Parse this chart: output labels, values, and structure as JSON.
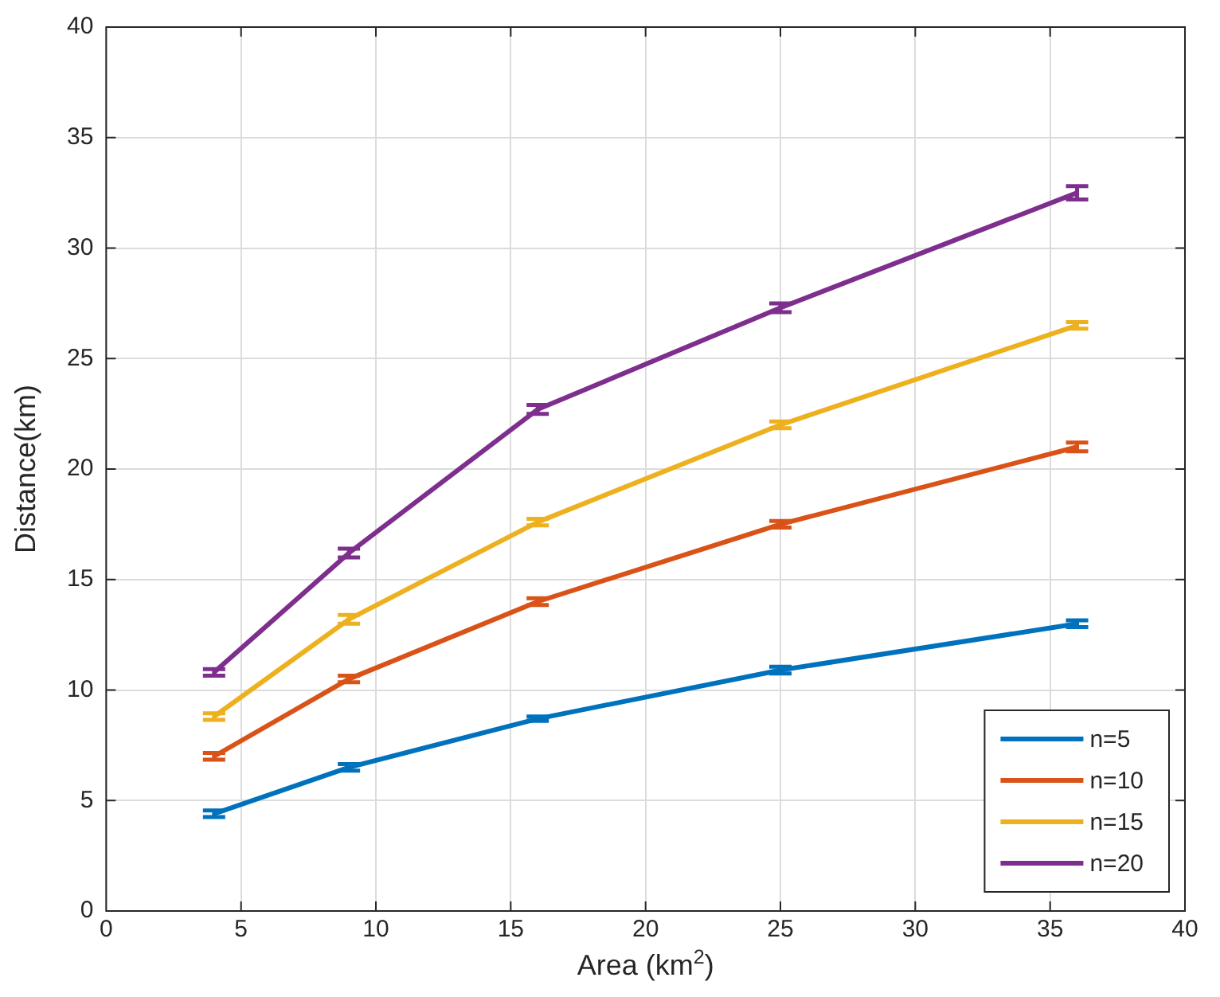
{
  "chart_data": {
    "type": "line",
    "xlabel": "Area (km$^{2}$)",
    "ylabel": "Distance(km)",
    "x": [
      4,
      9,
      16,
      25,
      36
    ],
    "series": [
      {
        "name": "n=5",
        "color": "#0072bd",
        "values": [
          4.4,
          6.5,
          8.7,
          10.9,
          13.0
        ],
        "errors": [
          0.15,
          0.15,
          0.1,
          0.15,
          0.15
        ]
      },
      {
        "name": "n=10",
        "color": "#d95319",
        "values": [
          7.0,
          10.5,
          14.0,
          17.5,
          21.0
        ],
        "errors": [
          0.15,
          0.15,
          0.15,
          0.15,
          0.2
        ]
      },
      {
        "name": "n=15",
        "color": "#edb120",
        "values": [
          8.8,
          13.2,
          17.6,
          22.0,
          26.5
        ],
        "errors": [
          0.15,
          0.2,
          0.15,
          0.15,
          0.15
        ]
      },
      {
        "name": "n=20",
        "color": "#7e2f8e",
        "values": [
          10.8,
          16.2,
          22.7,
          27.3,
          32.5
        ],
        "errors": [
          0.15,
          0.2,
          0.2,
          0.2,
          0.3
        ]
      }
    ],
    "xlim": [
      0,
      40
    ],
    "xticks": [
      0,
      5,
      10,
      15,
      20,
      25,
      30,
      35,
      40
    ],
    "ylim": [
      0,
      40
    ],
    "yticks": [
      0,
      5,
      10,
      15,
      20,
      25,
      30,
      35,
      40
    ],
    "grid": true,
    "legend": "bottom right",
    "marker": "none",
    "line_style": "solid"
  }
}
